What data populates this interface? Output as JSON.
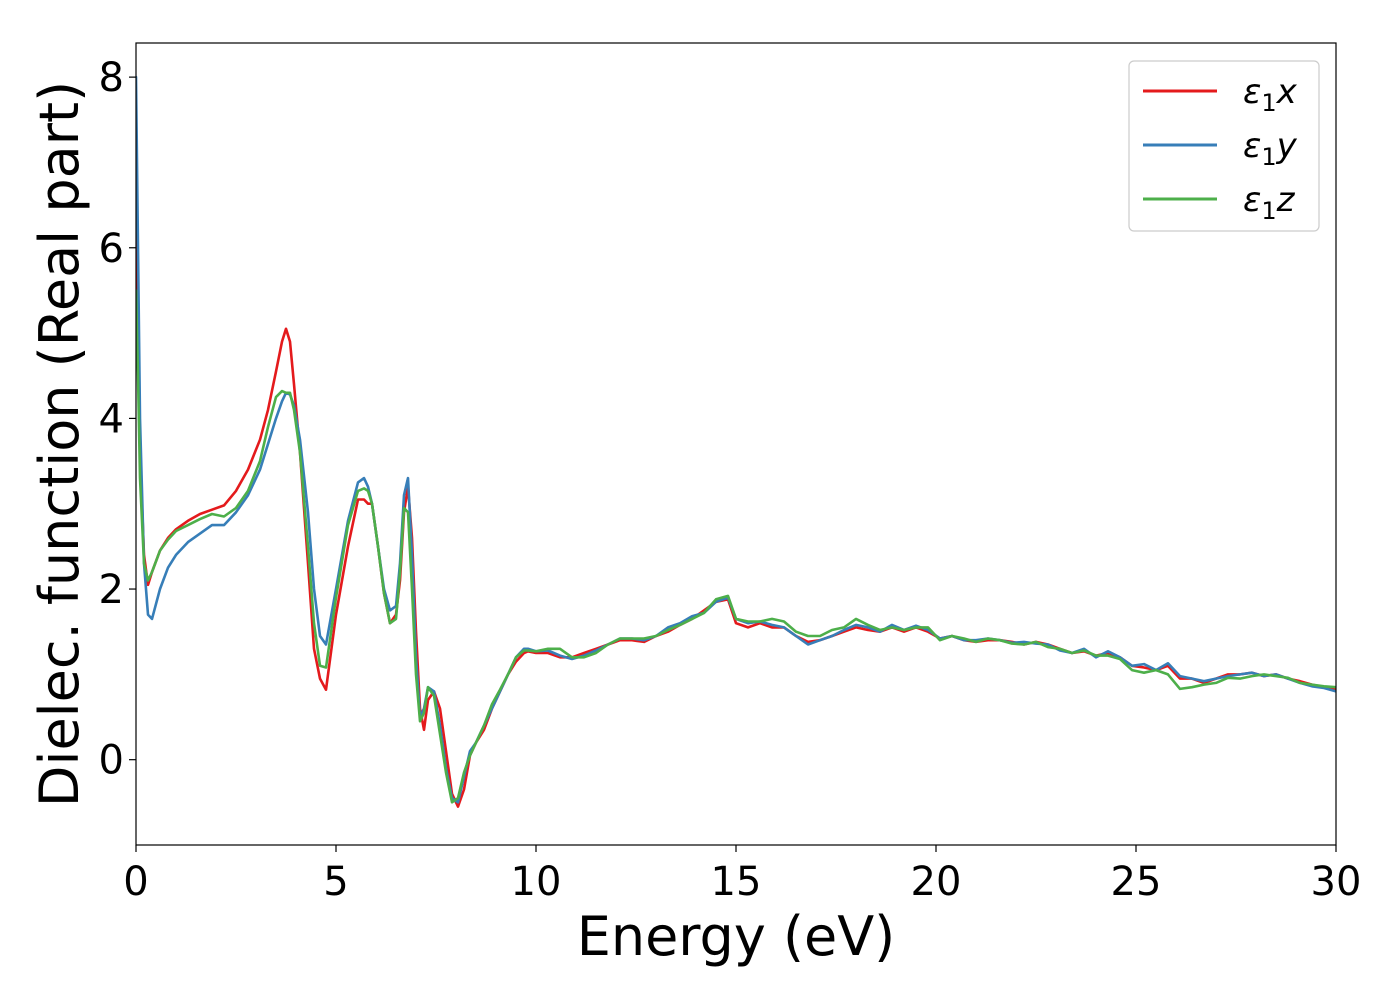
{
  "chart_data": {
    "type": "line",
    "title": "",
    "xlabel": "Energy (eV)",
    "ylabel": "Dielec. function (Real part)",
    "xlim": [
      0,
      30
    ],
    "ylim": [
      -1.0,
      8.4
    ],
    "xticks": [
      0,
      5,
      10,
      15,
      20,
      25,
      30
    ],
    "xtick_labels": [
      "0",
      "5",
      "10",
      "15",
      "20",
      "25",
      "30"
    ],
    "yticks": [
      0,
      2,
      4,
      6,
      8
    ],
    "ytick_labels": [
      "0",
      "2",
      "4",
      "6",
      "8"
    ],
    "grid": false,
    "legend_position": "top-right",
    "series": [
      {
        "name": "ε₁x",
        "legend_base": "ε",
        "legend_sub": "1",
        "legend_suffix": "x",
        "color": "#e41a1c",
        "x": [
          0.0,
          0.05,
          0.1,
          0.2,
          0.3,
          0.4,
          0.6,
          0.8,
          1.0,
          1.3,
          1.6,
          1.9,
          2.2,
          2.5,
          2.8,
          3.1,
          3.3,
          3.5,
          3.65,
          3.75,
          3.85,
          3.95,
          4.1,
          4.3,
          4.45,
          4.6,
          4.75,
          5.0,
          5.3,
          5.55,
          5.7,
          5.8,
          5.9,
          6.05,
          6.2,
          6.35,
          6.5,
          6.6,
          6.7,
          6.8,
          6.9,
          7.0,
          7.1,
          7.2,
          7.3,
          7.45,
          7.6,
          7.75,
          7.9,
          8.05,
          8.2,
          8.35,
          8.5,
          8.7,
          8.9,
          9.1,
          9.3,
          9.5,
          9.7,
          9.8,
          10.0,
          10.3,
          10.6,
          10.9,
          11.2,
          11.5,
          11.8,
          12.1,
          12.4,
          12.7,
          13.0,
          13.3,
          13.6,
          13.9,
          14.2,
          14.5,
          14.8,
          15.0,
          15.3,
          15.6,
          15.9,
          16.2,
          16.5,
          16.8,
          17.1,
          17.4,
          17.7,
          18.0,
          18.3,
          18.6,
          18.9,
          19.2,
          19.5,
          19.8,
          20.1,
          20.4,
          20.7,
          21.0,
          21.3,
          21.6,
          21.9,
          22.2,
          22.5,
          22.8,
          23.1,
          23.4,
          23.7,
          24.0,
          24.3,
          24.6,
          24.9,
          25.2,
          25.5,
          25.8,
          26.1,
          26.4,
          26.7,
          27.0,
          27.3,
          27.6,
          27.9,
          28.2,
          28.5,
          28.8,
          29.1,
          29.4,
          29.7,
          30.0
        ],
        "y": [
          6.3,
          5.0,
          3.6,
          2.4,
          2.05,
          2.2,
          2.45,
          2.6,
          2.7,
          2.8,
          2.88,
          2.93,
          2.98,
          3.15,
          3.4,
          3.75,
          4.1,
          4.55,
          4.9,
          5.05,
          4.9,
          4.4,
          3.6,
          2.3,
          1.3,
          0.95,
          0.82,
          1.7,
          2.5,
          3.05,
          3.05,
          3.0,
          3.0,
          2.5,
          1.95,
          1.6,
          1.7,
          2.1,
          2.9,
          3.2,
          2.6,
          1.5,
          0.6,
          0.35,
          0.7,
          0.8,
          0.6,
          0.1,
          -0.4,
          -0.55,
          -0.35,
          0.05,
          0.2,
          0.35,
          0.6,
          0.8,
          1.0,
          1.15,
          1.25,
          1.27,
          1.25,
          1.25,
          1.2,
          1.2,
          1.25,
          1.3,
          1.35,
          1.4,
          1.4,
          1.38,
          1.45,
          1.5,
          1.58,
          1.65,
          1.75,
          1.85,
          1.88,
          1.6,
          1.55,
          1.6,
          1.55,
          1.55,
          1.45,
          1.38,
          1.4,
          1.45,
          1.5,
          1.55,
          1.52,
          1.5,
          1.55,
          1.5,
          1.55,
          1.5,
          1.42,
          1.45,
          1.4,
          1.38,
          1.4,
          1.4,
          1.38,
          1.35,
          1.38,
          1.35,
          1.3,
          1.25,
          1.27,
          1.22,
          1.25,
          1.2,
          1.1,
          1.08,
          1.05,
          1.1,
          0.95,
          0.95,
          0.9,
          0.95,
          1.0,
          1.0,
          1.02,
          0.98,
          1.0,
          0.95,
          0.92,
          0.88,
          0.85,
          0.83
        ]
      },
      {
        "name": "ε₁y",
        "legend_base": "ε",
        "legend_sub": "1",
        "legend_suffix": "y",
        "color": "#377eb8",
        "x": [
          0.0,
          0.05,
          0.1,
          0.2,
          0.3,
          0.4,
          0.6,
          0.8,
          1.0,
          1.3,
          1.6,
          1.9,
          2.2,
          2.5,
          2.8,
          3.1,
          3.3,
          3.5,
          3.65,
          3.75,
          3.85,
          3.95,
          4.1,
          4.3,
          4.45,
          4.6,
          4.75,
          5.0,
          5.3,
          5.55,
          5.7,
          5.8,
          5.9,
          6.05,
          6.2,
          6.35,
          6.5,
          6.6,
          6.7,
          6.8,
          6.9,
          7.0,
          7.1,
          7.2,
          7.3,
          7.45,
          7.6,
          7.75,
          7.9,
          8.05,
          8.2,
          8.35,
          8.5,
          8.7,
          8.9,
          9.1,
          9.3,
          9.5,
          9.7,
          9.8,
          10.0,
          10.3,
          10.6,
          10.9,
          11.2,
          11.5,
          11.8,
          12.1,
          12.4,
          12.7,
          13.0,
          13.3,
          13.6,
          13.9,
          14.2,
          14.5,
          14.8,
          15.0,
          15.3,
          15.6,
          15.9,
          16.2,
          16.5,
          16.8,
          17.1,
          17.4,
          17.7,
          18.0,
          18.3,
          18.6,
          18.9,
          19.2,
          19.5,
          19.8,
          20.1,
          20.4,
          20.7,
          21.0,
          21.3,
          21.6,
          21.9,
          22.2,
          22.5,
          22.8,
          23.1,
          23.4,
          23.7,
          24.0,
          24.3,
          24.6,
          24.9,
          25.2,
          25.5,
          25.8,
          26.1,
          26.4,
          26.7,
          27.0,
          27.3,
          27.6,
          27.9,
          28.2,
          28.5,
          28.8,
          29.1,
          29.4,
          29.7,
          30.0
        ],
        "y": [
          8.0,
          6.0,
          4.0,
          2.3,
          1.7,
          1.65,
          2.0,
          2.25,
          2.4,
          2.55,
          2.65,
          2.75,
          2.75,
          2.9,
          3.1,
          3.4,
          3.7,
          4.0,
          4.2,
          4.3,
          4.28,
          4.15,
          3.75,
          2.9,
          2.0,
          1.45,
          1.35,
          2.0,
          2.8,
          3.25,
          3.3,
          3.2,
          3.0,
          2.5,
          2.0,
          1.75,
          1.8,
          2.3,
          3.1,
          3.3,
          2.4,
          1.2,
          0.5,
          0.6,
          0.85,
          0.8,
          0.4,
          -0.1,
          -0.45,
          -0.5,
          -0.2,
          0.1,
          0.2,
          0.4,
          0.6,
          0.8,
          1.0,
          1.2,
          1.3,
          1.3,
          1.27,
          1.28,
          1.22,
          1.18,
          1.22,
          1.28,
          1.35,
          1.42,
          1.42,
          1.4,
          1.45,
          1.55,
          1.6,
          1.68,
          1.72,
          1.85,
          1.9,
          1.65,
          1.6,
          1.62,
          1.58,
          1.55,
          1.45,
          1.35,
          1.4,
          1.45,
          1.52,
          1.58,
          1.55,
          1.5,
          1.58,
          1.52,
          1.57,
          1.52,
          1.42,
          1.45,
          1.4,
          1.4,
          1.42,
          1.4,
          1.37,
          1.38,
          1.36,
          1.35,
          1.28,
          1.25,
          1.3,
          1.2,
          1.27,
          1.2,
          1.1,
          1.12,
          1.05,
          1.13,
          0.98,
          0.95,
          0.92,
          0.95,
          0.98,
          1.0,
          1.02,
          0.98,
          1.0,
          0.95,
          0.9,
          0.86,
          0.84,
          0.8
        ]
      },
      {
        "name": "ε₁z",
        "legend_base": "ε",
        "legend_sub": "1",
        "legend_suffix": "z",
        "color": "#4daf4a",
        "x": [
          0.0,
          0.05,
          0.1,
          0.2,
          0.3,
          0.4,
          0.6,
          0.8,
          1.0,
          1.3,
          1.6,
          1.9,
          2.2,
          2.5,
          2.8,
          3.1,
          3.3,
          3.5,
          3.65,
          3.75,
          3.85,
          3.95,
          4.1,
          4.3,
          4.45,
          4.6,
          4.75,
          5.0,
          5.3,
          5.55,
          5.7,
          5.8,
          5.9,
          6.05,
          6.2,
          6.35,
          6.5,
          6.6,
          6.7,
          6.8,
          6.9,
          7.0,
          7.1,
          7.2,
          7.3,
          7.45,
          7.6,
          7.75,
          7.9,
          8.05,
          8.2,
          8.35,
          8.5,
          8.7,
          8.9,
          9.1,
          9.3,
          9.5,
          9.7,
          9.8,
          10.0,
          10.3,
          10.6,
          10.9,
          11.2,
          11.5,
          11.8,
          12.1,
          12.4,
          12.7,
          13.0,
          13.3,
          13.6,
          13.9,
          14.2,
          14.5,
          14.8,
          15.0,
          15.3,
          15.6,
          15.9,
          16.2,
          16.5,
          16.8,
          17.1,
          17.4,
          17.7,
          18.0,
          18.3,
          18.6,
          18.9,
          19.2,
          19.5,
          19.8,
          20.1,
          20.4,
          20.7,
          21.0,
          21.3,
          21.6,
          21.9,
          22.2,
          22.5,
          22.8,
          23.1,
          23.4,
          23.7,
          24.0,
          24.3,
          24.6,
          24.9,
          25.2,
          25.5,
          25.8,
          26.1,
          26.4,
          26.7,
          27.0,
          27.3,
          27.6,
          27.9,
          28.2,
          28.5,
          28.8,
          29.1,
          29.4,
          29.7,
          30.0
        ],
        "y": [
          5.5,
          4.5,
          3.3,
          2.3,
          2.1,
          2.2,
          2.45,
          2.58,
          2.68,
          2.75,
          2.82,
          2.88,
          2.85,
          2.95,
          3.15,
          3.5,
          3.9,
          4.25,
          4.32,
          4.3,
          4.3,
          4.1,
          3.6,
          2.5,
          1.6,
          1.1,
          1.08,
          1.9,
          2.75,
          3.15,
          3.18,
          3.15,
          3.0,
          2.5,
          1.95,
          1.6,
          1.65,
          2.2,
          2.95,
          2.9,
          2.0,
          1.0,
          0.45,
          0.55,
          0.85,
          0.75,
          0.3,
          -0.15,
          -0.5,
          -0.45,
          -0.15,
          0.05,
          0.2,
          0.4,
          0.65,
          0.82,
          1.0,
          1.2,
          1.28,
          1.28,
          1.27,
          1.3,
          1.3,
          1.2,
          1.2,
          1.25,
          1.35,
          1.42,
          1.42,
          1.42,
          1.45,
          1.52,
          1.58,
          1.65,
          1.72,
          1.88,
          1.92,
          1.65,
          1.62,
          1.62,
          1.65,
          1.62,
          1.5,
          1.45,
          1.45,
          1.52,
          1.55,
          1.65,
          1.58,
          1.52,
          1.55,
          1.52,
          1.55,
          1.55,
          1.4,
          1.45,
          1.42,
          1.38,
          1.42,
          1.4,
          1.36,
          1.35,
          1.38,
          1.32,
          1.3,
          1.25,
          1.28,
          1.22,
          1.22,
          1.18,
          1.05,
          1.02,
          1.05,
          1.0,
          0.83,
          0.85,
          0.88,
          0.9,
          0.96,
          0.95,
          0.98,
          1.0,
          0.98,
          0.96,
          0.9,
          0.88,
          0.86,
          0.85
        ]
      }
    ]
  }
}
